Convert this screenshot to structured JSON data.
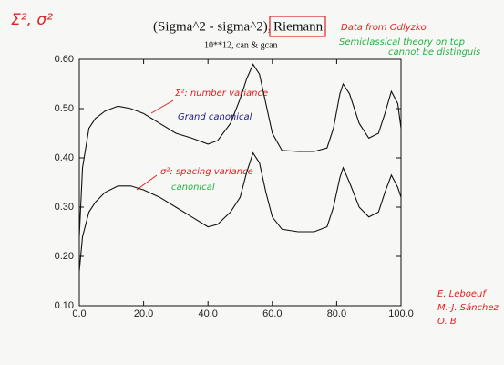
{
  "chart_data": {
    "type": "line",
    "corner_label": "Σ², σ²",
    "title": "(Sigma^2 - sigma^2),",
    "title_boxed": "Riemann",
    "subtitle": "10**12, can & gcan",
    "notes": [
      "Data from Odlyzko",
      "Semiclassical theory on top",
      "cannot be distinguis"
    ],
    "annotations": [
      "Σ²: number variance",
      "Grand canonical",
      "σ²: spacing variance",
      "canonical"
    ],
    "authors": [
      "E. Leboeuf",
      "M.-J. Sánchez",
      "O. B"
    ],
    "x": [
      0,
      1,
      3,
      5,
      8,
      12,
      16,
      20,
      25,
      30,
      35,
      40,
      43,
      47,
      50,
      52,
      54,
      56,
      58,
      60,
      63,
      68,
      73,
      77,
      79,
      81,
      82,
      84,
      87,
      90,
      93,
      95,
      97,
      99,
      100
    ],
    "series": [
      {
        "color": "#111111",
        "values": [
          0.24,
          0.38,
          0.46,
          0.48,
          0.495,
          0.505,
          0.5,
          0.49,
          0.47,
          0.45,
          0.44,
          0.428,
          0.435,
          0.47,
          0.52,
          0.56,
          0.59,
          0.57,
          0.51,
          0.45,
          0.415,
          0.413,
          0.413,
          0.42,
          0.46,
          0.53,
          0.55,
          0.53,
          0.47,
          0.44,
          0.45,
          0.49,
          0.535,
          0.51,
          0.46
        ]
      },
      {
        "color": "#111111",
        "values": [
          0.17,
          0.24,
          0.29,
          0.31,
          0.33,
          0.343,
          0.343,
          0.335,
          0.32,
          0.3,
          0.28,
          0.26,
          0.265,
          0.29,
          0.32,
          0.37,
          0.41,
          0.39,
          0.33,
          0.28,
          0.255,
          0.25,
          0.25,
          0.26,
          0.3,
          0.36,
          0.38,
          0.35,
          0.3,
          0.28,
          0.29,
          0.33,
          0.365,
          0.34,
          0.32
        ]
      }
    ],
    "xlim": [
      0,
      100
    ],
    "xticks": [
      {
        "value": 0,
        "label": "0.0"
      },
      {
        "value": 20,
        "label": "20.0"
      },
      {
        "value": 40,
        "label": "40.0"
      },
      {
        "value": 60,
        "label": "60.0"
      },
      {
        "value": 80,
        "label": "80.0"
      },
      {
        "value": 100,
        "label": "100.0"
      }
    ],
    "ylim": [
      0.1,
      0.6
    ],
    "yticks": [
      {
        "value": 0.1,
        "label": "0.10"
      },
      {
        "value": 0.2,
        "label": "0.20"
      },
      {
        "value": 0.3,
        "label": "0.30"
      },
      {
        "value": 0.4,
        "label": "0.40"
      },
      {
        "value": 0.5,
        "label": "0.50"
      },
      {
        "value": 0.6,
        "label": "0.60"
      }
    ]
  }
}
